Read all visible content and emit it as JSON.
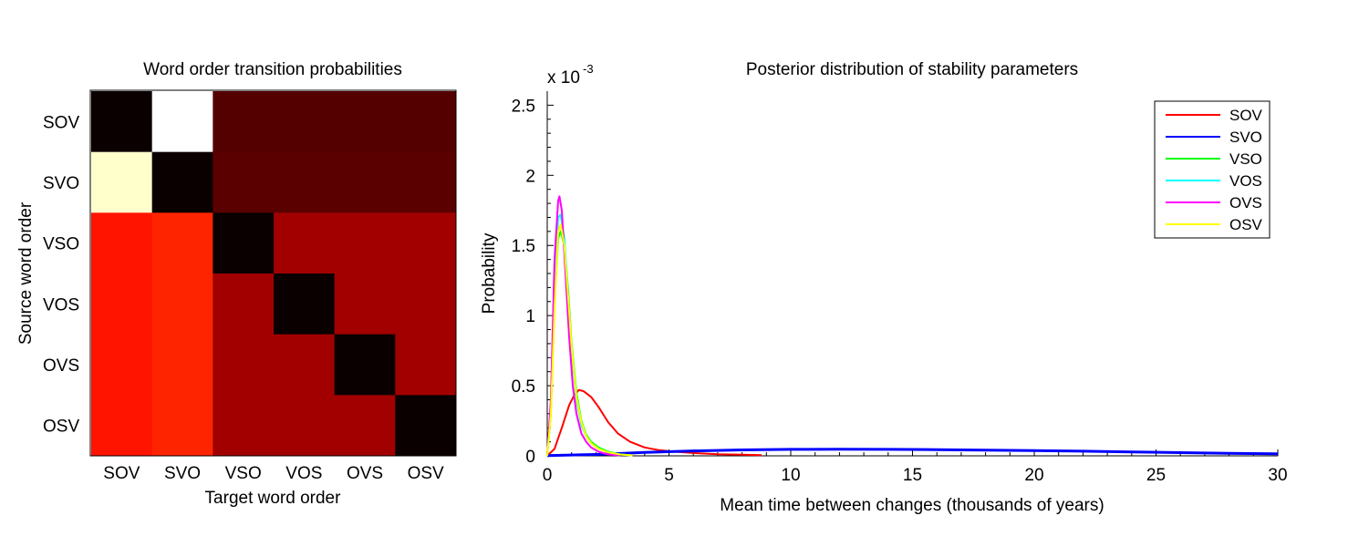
{
  "chart_data": [
    {
      "type": "heatmap",
      "title": "Word order transition probabilities",
      "xlabel": "Target word order",
      "ylabel": "Source word order",
      "x_categories": [
        "SOV",
        "SVO",
        "VSO",
        "VOS",
        "OVS",
        "OSV"
      ],
      "y_categories": [
        "SOV",
        "SVO",
        "VSO",
        "VOS",
        "OVS",
        "OSV"
      ],
      "colormap": "hot",
      "cell_colors": [
        [
          "#0a0000",
          "#ffffff",
          "#550000",
          "#550000",
          "#550000",
          "#550000"
        ],
        [
          "#ffffcc",
          "#0a0000",
          "#5a0000",
          "#5a0000",
          "#5a0000",
          "#5a0000"
        ],
        [
          "#ff1400",
          "#ff2400",
          "#0a0000",
          "#a20000",
          "#a20000",
          "#a20000"
        ],
        [
          "#ff1400",
          "#ff2400",
          "#a20000",
          "#0a0000",
          "#a20000",
          "#a20000"
        ],
        [
          "#ff1400",
          "#ff2400",
          "#a20000",
          "#a20000",
          "#0a0000",
          "#a20000"
        ],
        [
          "#ff1400",
          "#ff2400",
          "#a20000",
          "#a20000",
          "#a20000",
          "#0a0000"
        ]
      ]
    },
    {
      "type": "line",
      "title": "Posterior distribution of stability parameters",
      "xlabel": "Mean time between changes (thousands of years)",
      "ylabel": "Probability",
      "scale_note": "x 10",
      "scale_exponent": "-3",
      "xlim": [
        0,
        30
      ],
      "ylim": [
        0,
        2.6
      ],
      "x_ticks": [
        "0",
        "5",
        "10",
        "15",
        "20",
        "25",
        "30"
      ],
      "y_ticks": [
        "0",
        "0.5",
        "1",
        "1.5",
        "2",
        "2.5"
      ],
      "y_tick_values": [
        0,
        0.5,
        1,
        1.5,
        2,
        2.5
      ],
      "x_tick_values": [
        0,
        5,
        10,
        15,
        20,
        25,
        30
      ],
      "legend_position": "top-right",
      "series": [
        {
          "name": "SOV",
          "color": "#ff0000",
          "x": [
            0,
            0.3,
            0.6,
            0.9,
            1.1,
            1.3,
            1.5,
            1.8,
            2.1,
            2.5,
            2.9,
            3.4,
            4.0,
            4.6,
            5.2,
            6.0,
            7.0,
            8.0,
            8.8
          ],
          "y": [
            0,
            0.05,
            0.2,
            0.36,
            0.43,
            0.47,
            0.46,
            0.42,
            0.35,
            0.24,
            0.16,
            0.1,
            0.06,
            0.04,
            0.03,
            0.02,
            0.012,
            0.008,
            0.005
          ]
        },
        {
          "name": "SVO",
          "color": "#0000ff",
          "x": [
            0,
            2,
            4,
            6,
            8,
            10,
            12,
            14,
            16,
            18,
            20,
            22,
            24,
            26,
            28,
            30
          ],
          "y": [
            0.002,
            0.01,
            0.025,
            0.035,
            0.042,
            0.046,
            0.047,
            0.046,
            0.044,
            0.041,
            0.037,
            0.033,
            0.028,
            0.023,
            0.018,
            0.014
          ]
        },
        {
          "name": "VSO",
          "color": "#00ff00",
          "x": [
            0,
            0.15,
            0.3,
            0.45,
            0.55,
            0.7,
            0.85,
            1.0,
            1.2,
            1.4,
            1.6,
            1.8,
            2.1,
            2.5,
            3.0,
            3.5
          ],
          "y": [
            0,
            0.3,
            1.1,
            1.55,
            1.6,
            1.5,
            1.2,
            0.8,
            0.45,
            0.25,
            0.15,
            0.1,
            0.06,
            0.03,
            0.01,
            0.003
          ]
        },
        {
          "name": "VOS",
          "color": "#00ffff",
          "x": [
            0,
            0.15,
            0.3,
            0.45,
            0.55,
            0.7,
            0.85,
            1.0,
            1.2,
            1.4,
            1.6,
            1.8,
            2.1,
            2.5,
            3.0,
            3.5
          ],
          "y": [
            0,
            0.35,
            1.2,
            1.7,
            1.72,
            1.55,
            1.15,
            0.75,
            0.4,
            0.22,
            0.14,
            0.09,
            0.05,
            0.025,
            0.01,
            0.003
          ]
        },
        {
          "name": "OVS",
          "color": "#ff00ff",
          "x": [
            0,
            0.15,
            0.3,
            0.45,
            0.5,
            0.6,
            0.75,
            0.9,
            1.05,
            1.2,
            1.4,
            1.6,
            1.8,
            2.1,
            2.5,
            3.0
          ],
          "y": [
            0,
            0.4,
            1.4,
            1.82,
            1.85,
            1.75,
            1.3,
            0.85,
            0.5,
            0.3,
            0.16,
            0.1,
            0.06,
            0.03,
            0.01,
            0.003
          ]
        },
        {
          "name": "OSV",
          "color": "#ffff00",
          "x": [
            0,
            0.15,
            0.3,
            0.45,
            0.55,
            0.7,
            0.85,
            1.0,
            1.2,
            1.4,
            1.6,
            1.8,
            2.1,
            2.5,
            3.0,
            3.5
          ],
          "y": [
            0,
            0.3,
            1.05,
            1.6,
            1.65,
            1.5,
            1.15,
            0.78,
            0.42,
            0.24,
            0.14,
            0.09,
            0.05,
            0.025,
            0.01,
            0.003
          ]
        }
      ]
    }
  ]
}
